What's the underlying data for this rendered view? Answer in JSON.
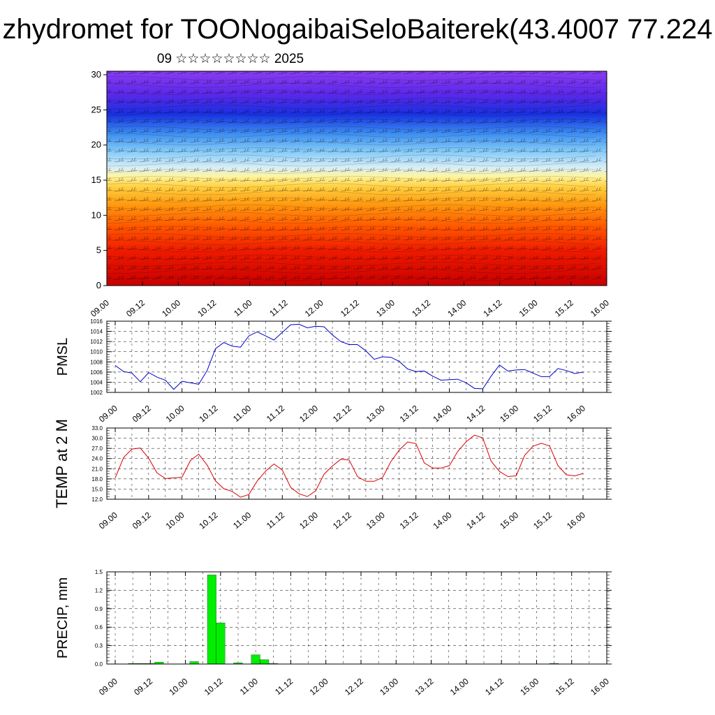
{
  "title": "zhydromet for TOONogaibaiSeloBaiterek(43.4007 77.224",
  "subtitle": "09 ☆☆☆☆☆☆☆☆ 2025",
  "time_labels": [
    "09.00",
    "09.12",
    "10.00",
    "10.12",
    "11.00",
    "11.12",
    "12.00",
    "12.12",
    "13.00",
    "13.12",
    "14.00",
    "14.12",
    "15.00",
    "15.12",
    "16.00"
  ],
  "colors": {
    "pmsl": "#0000cc",
    "temp": "#dd0000",
    "precip": "#00ee00",
    "axis": "#000000"
  },
  "chart_data": [
    {
      "type": "heatmap",
      "name": "cross-section",
      "title": "",
      "ylabel": "",
      "ylim": [
        0,
        30.5
      ],
      "yticks": [
        0,
        5,
        10,
        15,
        20,
        25,
        30
      ],
      "xlim": [
        0,
        168
      ],
      "color_scale": "red (low levels) to yellow (~15) to light blue to blue/purple (top)",
      "overlay": "wind barbs"
    },
    {
      "type": "line",
      "name": "pmsl",
      "ylabel": "PMSL",
      "ylim": [
        1002,
        1016
      ],
      "yticks": [
        1002,
        1004,
        1006,
        1008,
        1010,
        1012,
        1014,
        1016
      ],
      "ytick_labels": [
        "1002",
        "1004",
        "1006",
        "1008",
        "1010",
        "1012",
        "1014",
        "1016"
      ],
      "xlim": [
        0,
        168
      ],
      "x": [
        0,
        3,
        6,
        9,
        12,
        15,
        18,
        21,
        24,
        27,
        30,
        33,
        36,
        39,
        42,
        45,
        48,
        51,
        54,
        57,
        60,
        63,
        66,
        69,
        72,
        75,
        78,
        81,
        84,
        87,
        90,
        93,
        96,
        99,
        102,
        105,
        108,
        111,
        114,
        117,
        120,
        123,
        126,
        129,
        132,
        135,
        138,
        141,
        144,
        147,
        150,
        153,
        156,
        159,
        162,
        165,
        168
      ],
      "values": [
        1007.3,
        1006.1,
        1005.8,
        1004.1,
        1005.9,
        1005.0,
        1004.4,
        1002.6,
        1004.2,
        1003.9,
        1003.6,
        1006.3,
        1010.6,
        1011.8,
        1011.1,
        1010.9,
        1013.1,
        1013.9,
        1013.1,
        1012.3,
        1013.8,
        1015.3,
        1015.4,
        1014.7,
        1015.0,
        1014.9,
        1013.3,
        1012.0,
        1011.4,
        1011.4,
        1010.2,
        1008.5,
        1009.0,
        1008.9,
        1008.1,
        1006.6,
        1006.1,
        1006.2,
        1005.2,
        1004.4,
        1004.5,
        1004.6,
        1003.9,
        1002.8,
        1002.7,
        1005.2,
        1007.4,
        1006.2,
        1006.4,
        1006.5,
        1005.8,
        1005.1,
        1005.1,
        1006.7,
        1006.3,
        1005.7,
        1006.0
      ]
    },
    {
      "type": "line",
      "name": "temp",
      "ylabel": "TEMP at 2 M",
      "ylim": [
        12,
        33
      ],
      "yticks": [
        12,
        15,
        18,
        21,
        24,
        27,
        30,
        33
      ],
      "ytick_labels": [
        "12.0",
        "15.0",
        "18.0",
        "21.0",
        "24.0",
        "27.0",
        "30.0",
        "33.0"
      ],
      "xlim": [
        0,
        168
      ],
      "x": [
        0,
        3,
        6,
        9,
        12,
        15,
        18,
        21,
        24,
        27,
        30,
        33,
        36,
        39,
        42,
        45,
        48,
        51,
        54,
        57,
        60,
        63,
        66,
        69,
        72,
        75,
        78,
        81,
        84,
        87,
        90,
        93,
        96,
        99,
        102,
        105,
        108,
        111,
        114,
        117,
        120,
        123,
        126,
        129,
        132,
        135,
        138,
        141,
        144,
        147,
        150,
        153,
        156,
        159,
        162,
        165,
        168
      ],
      "values": [
        18.3,
        24.3,
        26.8,
        27.1,
        24.1,
        19.8,
        18.1,
        18.3,
        18.5,
        23.4,
        25.3,
        22.1,
        17.4,
        15.1,
        14.3,
        12.6,
        13.4,
        17.4,
        20.3,
        22.4,
        20.6,
        15.5,
        13.6,
        12.8,
        14.5,
        19.4,
        21.8,
        23.8,
        23.6,
        18.7,
        17.3,
        17.3,
        18.4,
        23.1,
        26.5,
        28.9,
        28.4,
        22.7,
        21.2,
        21.2,
        21.9,
        26.1,
        28.9,
        30.9,
        30.1,
        23.2,
        20.2,
        18.7,
        18.9,
        24.9,
        27.6,
        28.5,
        27.7,
        21.9,
        19.2,
        18.9,
        19.6
      ]
    },
    {
      "type": "bar",
      "name": "precip",
      "ylabel": "PRECIP, mm",
      "ylim": [
        0,
        1.5
      ],
      "yticks": [
        0,
        0.3,
        0.6,
        0.9,
        1.2,
        1.5
      ],
      "ytick_labels": [
        "0.0",
        "0.3",
        "0.6",
        "0.9",
        "1.2",
        "1.5"
      ],
      "xlim": [
        0,
        168
      ],
      "x": [
        6,
        9,
        12,
        15,
        27,
        33,
        36,
        42,
        48,
        51,
        54,
        150
      ],
      "values": [
        0.01,
        0.01,
        0.01,
        0.03,
        0.04,
        1.45,
        0.67,
        0.02,
        0.15,
        0.07,
        0.01,
        0.01
      ]
    }
  ]
}
